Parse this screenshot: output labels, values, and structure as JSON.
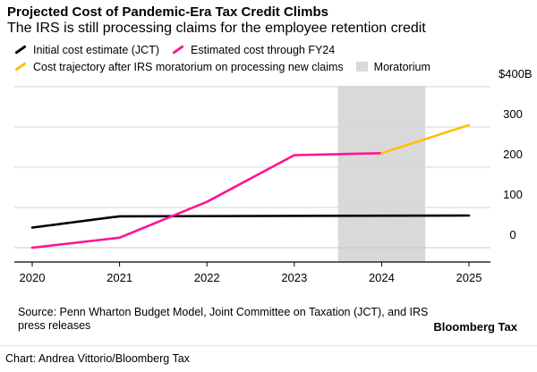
{
  "chart_data": {
    "type": "line",
    "title": "Projected Cost of Pandemic-Era Tax Credit Climbs",
    "subtitle": "The IRS is still processing claims for the employee retention credit",
    "x": [
      2020,
      2021,
      2022,
      2023,
      2024,
      2025
    ],
    "x_tick_labels": [
      "2020",
      "2021",
      "2022",
      "2023",
      "2024",
      "2025"
    ],
    "y_tick_labels": [
      "$400B",
      "300",
      "200",
      "100",
      "0"
    ],
    "y_ticks": [
      400,
      300,
      200,
      100,
      0
    ],
    "ylim": [
      -30,
      400
    ],
    "xlim": [
      2020,
      2025.2
    ],
    "series": [
      {
        "name": "Initial cost estimate (JCT)",
        "color": "#000000",
        "points": [
          [
            2020,
            50
          ],
          [
            2021,
            78
          ],
          [
            2025,
            80
          ]
        ]
      },
      {
        "name": "Estimated cost through FY24",
        "color": "#ff1493",
        "points": [
          [
            2020,
            0
          ],
          [
            2021,
            25
          ],
          [
            2022,
            114
          ],
          [
            2023,
            230
          ],
          [
            2024,
            235
          ]
        ]
      },
      {
        "name": "Cost trajectory after IRS moratorium on processing new claims",
        "color": "#ffc000",
        "points": [
          [
            2024,
            235
          ],
          [
            2025,
            305
          ]
        ]
      }
    ],
    "moratorium": {
      "name": "Moratorium",
      "color": "#d9d9d9",
      "x_start": 2023.5,
      "x_end": 2024.5
    },
    "legend_position": "top-left"
  },
  "source": "Source: Penn Wharton Budget Model, Joint Committee on Taxation (JCT), and IRS press releases",
  "brand": "Bloomberg Tax",
  "credit": "Chart: Andrea Vittorio/Bloomberg Tax"
}
